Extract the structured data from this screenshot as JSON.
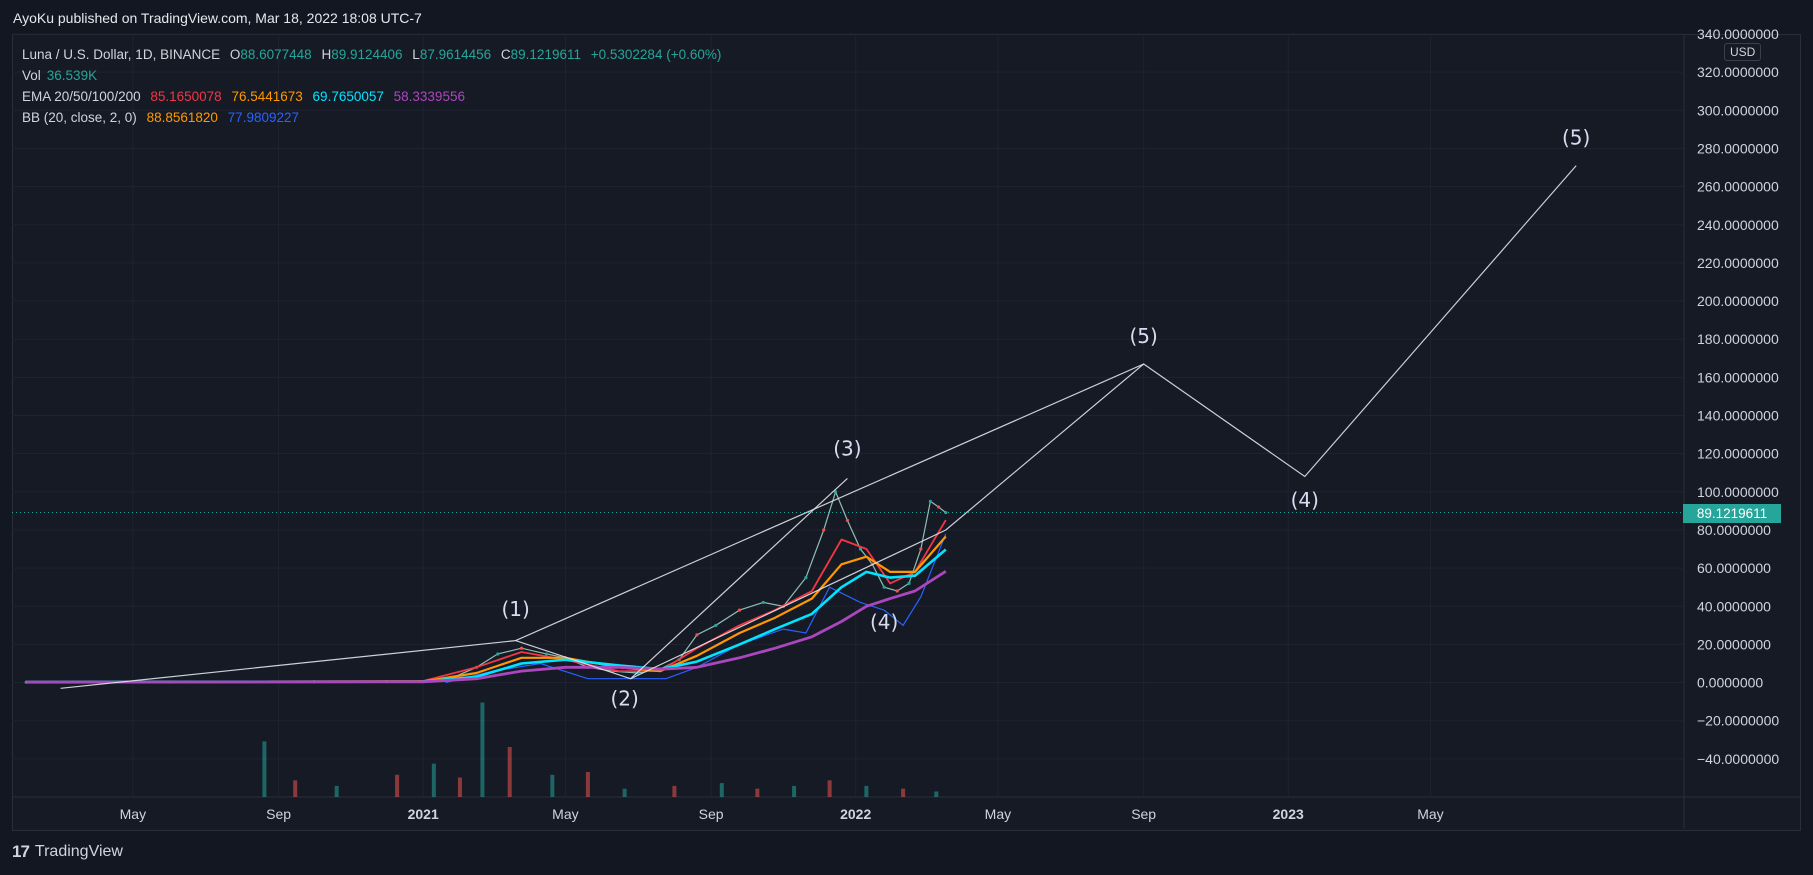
{
  "header": {
    "published": "AyoKu published on TradingView.com, Mar 18, 2022 18:08 UTC-7"
  },
  "legend": {
    "symbol": "Luna / U.S. Dollar, 1D, BINANCE",
    "ohlc": {
      "o_label": "O",
      "o": "88.6077448",
      "h_label": "H",
      "h": "89.9124406",
      "l_label": "L",
      "l": "87.9614456",
      "c_label": "C",
      "c": "89.1219611",
      "change": "+0.5302284 (+0.60%)"
    },
    "vol_label": "Vol",
    "vol": "36.539K",
    "ema_label": "EMA 20/50/100/200",
    "ema": [
      "85.1650078",
      "76.5441673",
      "69.7650057",
      "58.3339556"
    ],
    "bb_label": "BB (20, close, 2, 0)",
    "bb": [
      "88.8561820",
      "77.9809227"
    ]
  },
  "colors": {
    "up": "#26a69a",
    "down": "#ef5350",
    "ema20": "#f23645",
    "ema50": "#ff9800",
    "ema100": "#00e5ff",
    "ema200": "#ab47bc",
    "bb_upper": "#ff9800",
    "bb_lower": "#2962ff",
    "wave": "#e1e4ea"
  },
  "price_axis": {
    "currency": "USD",
    "ticks": [
      "340.0000000",
      "320.0000000",
      "300.0000000",
      "280.0000000",
      "260.0000000",
      "240.0000000",
      "220.0000000",
      "200.0000000",
      "180.0000000",
      "160.0000000",
      "140.0000000",
      "120.0000000",
      "100.0000000",
      "80.0000000",
      "60.0000000",
      "40.0000000",
      "20.0000000",
      "0.0000000",
      "−20.0000000",
      "−40.0000000"
    ],
    "current_price": "89.1219611"
  },
  "time_axis": {
    "labels": [
      "May",
      "Sep",
      "2021",
      "May",
      "Sep",
      "2022",
      "May",
      "Sep",
      "2023",
      "May"
    ]
  },
  "chart_data": {
    "type": "line",
    "title": "Luna / U.S. Dollar, 1D, BINANCE",
    "ylim": [
      -60,
      340
    ],
    "x_range": [
      "2020-01-20",
      "2023-12-01"
    ],
    "grid": true,
    "price_series": {
      "name": "LUNAUSD",
      "x": [
        "2020-02-01",
        "2020-06-01",
        "2020-10-01",
        "2020-12-01",
        "2021-01-20",
        "2021-02-15",
        "2021-03-05",
        "2021-03-25",
        "2021-04-15",
        "2021-05-01",
        "2021-05-20",
        "2021-06-10",
        "2021-07-01",
        "2021-07-20",
        "2021-08-05",
        "2021-08-20",
        "2021-09-05",
        "2021-09-25",
        "2021-10-15",
        "2021-11-01",
        "2021-11-20",
        "2021-12-05",
        "2021-12-15",
        "2021-12-25",
        "2022-01-05",
        "2022-01-15",
        "2022-01-25",
        "2022-02-05",
        "2022-02-15",
        "2022-02-25",
        "2022-03-05",
        "2022-03-12",
        "2022-03-18"
      ],
      "y": [
        0.2,
        0.3,
        0.4,
        0.5,
        1,
        8,
        15,
        18,
        15,
        13,
        8,
        6,
        5,
        7,
        12,
        25,
        30,
        38,
        42,
        40,
        55,
        80,
        100,
        85,
        70,
        62,
        50,
        48,
        52,
        70,
        95,
        92,
        89.12
      ]
    },
    "ema_series": [
      {
        "name": "EMA 20",
        "x": [
          "2020-02-01",
          "2021-01-01",
          "2021-02-15",
          "2021-03-25",
          "2021-05-01",
          "2021-06-15",
          "2021-07-20",
          "2021-08-20",
          "2021-09-25",
          "2021-10-25",
          "2021-11-25",
          "2021-12-20",
          "2022-01-10",
          "2022-01-30",
          "2022-02-20",
          "2022-03-18"
        ],
        "y": [
          0.3,
          0.8,
          8,
          16,
          12,
          6,
          6,
          18,
          30,
          38,
          48,
          75,
          70,
          52,
          58,
          85.17
        ]
      },
      {
        "name": "EMA 50",
        "x": [
          "2020-02-01",
          "2021-01-01",
          "2021-02-15",
          "2021-03-25",
          "2021-05-01",
          "2021-06-15",
          "2021-07-20",
          "2021-08-20",
          "2021-09-25",
          "2021-10-25",
          "2021-11-25",
          "2021-12-20",
          "2022-01-10",
          "2022-01-30",
          "2022-02-20",
          "2022-03-18"
        ],
        "y": [
          0.3,
          0.6,
          5,
          13,
          13,
          8,
          6,
          14,
          26,
          34,
          44,
          62,
          66,
          58,
          58,
          76.54
        ]
      },
      {
        "name": "EMA 100",
        "x": [
          "2020-02-01",
          "2021-01-01",
          "2021-02-15",
          "2021-03-25",
          "2021-05-01",
          "2021-06-15",
          "2021-07-20",
          "2021-08-20",
          "2021-09-25",
          "2021-10-25",
          "2021-11-25",
          "2021-12-20",
          "2022-01-10",
          "2022-01-30",
          "2022-02-20",
          "2022-03-18"
        ],
        "y": [
          0.3,
          0.5,
          3,
          10,
          12,
          9,
          7,
          11,
          20,
          28,
          36,
          50,
          58,
          55,
          56,
          69.77
        ]
      },
      {
        "name": "EMA 200",
        "x": [
          "2020-02-01",
          "2021-01-01",
          "2021-02-15",
          "2021-03-25",
          "2021-05-01",
          "2021-06-15",
          "2021-07-20",
          "2021-08-20",
          "2021-09-25",
          "2021-10-25",
          "2021-11-25",
          "2021-12-20",
          "2022-01-10",
          "2022-01-30",
          "2022-02-20",
          "2022-03-18"
        ],
        "y": [
          0.2,
          0.4,
          2,
          6,
          8,
          8,
          7,
          8,
          13,
          18,
          24,
          32,
          40,
          44,
          48,
          58.33
        ]
      }
    ],
    "bb_lower": {
      "name": "BB lower",
      "x": [
        "2021-01-20",
        "2021-03-01",
        "2021-04-10",
        "2021-05-20",
        "2021-06-20",
        "2021-07-25",
        "2021-08-20",
        "2021-09-25",
        "2021-11-01",
        "2021-11-20",
        "2021-12-10",
        "2022-01-05",
        "2022-01-25",
        "2022-02-10",
        "2022-02-25",
        "2022-03-18"
      ],
      "y": [
        0,
        6,
        10,
        2,
        2,
        2,
        8,
        20,
        28,
        26,
        50,
        42,
        38,
        30,
        45,
        77.98
      ]
    },
    "volume_bars": {
      "x": [
        "2020-08-20",
        "2020-09-15",
        "2020-10-20",
        "2020-12-10",
        "2021-01-10",
        "2021-02-01",
        "2021-02-20",
        "2021-03-15",
        "2021-04-20",
        "2021-05-20",
        "2021-06-20",
        "2021-08-01",
        "2021-09-10",
        "2021-10-10",
        "2021-11-10",
        "2021-12-10",
        "2022-01-10",
        "2022-02-10",
        "2022-03-10"
      ],
      "y": [
        100,
        30,
        20,
        40,
        60,
        35,
        170,
        90,
        40,
        45,
        15,
        20,
        25,
        15,
        20,
        30,
        20,
        15,
        10
      ]
    },
    "wave_annotations": [
      {
        "label": "(1)",
        "x": "2021-03-20",
        "y": 35
      },
      {
        "label": "(2)",
        "x": "2021-06-20",
        "y": -12
      },
      {
        "label": "(3)",
        "x": "2021-12-25",
        "y": 119
      },
      {
        "label": "(4)",
        "x": "2022-01-25",
        "y": 28
      },
      {
        "label": "(5)",
        "x": "2022-09-01",
        "y": 178
      },
      {
        "label": "(4)",
        "x": "2023-01-15",
        "y": 92
      },
      {
        "label": "(5)",
        "x": "2023-09-01",
        "y": 282
      }
    ],
    "wave_lines": [
      {
        "x": [
          "2020-03-01",
          "2021-03-20",
          "2021-06-25",
          "2021-12-25"
        ],
        "y": [
          -3,
          22,
          2,
          107
        ]
      },
      {
        "x": [
          "2021-06-25",
          "2022-03-18",
          "2022-09-01",
          "2023-01-15",
          "2023-09-01"
        ],
        "y": [
          2,
          80,
          167,
          108,
          271
        ]
      },
      {
        "x": [
          "2021-03-20",
          "2022-09-01"
        ],
        "y": [
          22,
          167
        ]
      }
    ]
  }
}
